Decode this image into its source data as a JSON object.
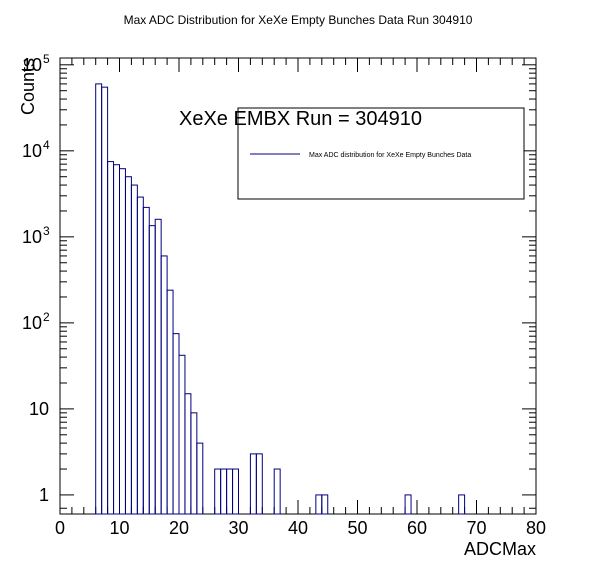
{
  "chart_data": {
    "type": "histogram",
    "title": "Max ADC Distribution for XeXe Empty Bunches Data Run 304910",
    "xlabel": "ADCMax",
    "ylabel": "Counts",
    "xlim": [
      0,
      80
    ],
    "ylim": [
      0.6,
      120000
    ],
    "yscale": "log",
    "grid": false,
    "bin_width": 1,
    "x_tick_labels": [
      "0",
      "10",
      "20",
      "30",
      "40",
      "50",
      "60",
      "70",
      "80"
    ],
    "y_tick_labels": [
      {
        "value": 1,
        "label": "1"
      },
      {
        "value": 10,
        "label": "10"
      },
      {
        "value": 100,
        "label": "10",
        "exp": "2"
      },
      {
        "value": 1000,
        "label": "10",
        "exp": "3"
      },
      {
        "value": 10000,
        "label": "10",
        "exp": "4"
      },
      {
        "value": 100000,
        "label": "10",
        "exp": "5"
      }
    ],
    "annotation": "XeXe EMBX Run = 304910",
    "legend": {
      "placement": "top-right",
      "entry": "Max ADC distribution for XeXe Empty Bunches Data"
    },
    "color": "#00007f",
    "bins": [
      {
        "x": 6,
        "y": 60000
      },
      {
        "x": 7,
        "y": 55000
      },
      {
        "x": 8,
        "y": 7500
      },
      {
        "x": 9,
        "y": 6900
      },
      {
        "x": 10,
        "y": 6200
      },
      {
        "x": 11,
        "y": 5000
      },
      {
        "x": 12,
        "y": 4000
      },
      {
        "x": 13,
        "y": 2900
      },
      {
        "x": 14,
        "y": 2200
      },
      {
        "x": 15,
        "y": 1350
      },
      {
        "x": 16,
        "y": 1600
      },
      {
        "x": 17,
        "y": 600
      },
      {
        "x": 18,
        "y": 240
      },
      {
        "x": 19,
        "y": 75
      },
      {
        "x": 20,
        "y": 42
      },
      {
        "x": 21,
        "y": 15
      },
      {
        "x": 22,
        "y": 9
      },
      {
        "x": 23,
        "y": 4
      },
      {
        "x": 26,
        "y": 2
      },
      {
        "x": 27,
        "y": 2
      },
      {
        "x": 28,
        "y": 2
      },
      {
        "x": 29,
        "y": 2
      },
      {
        "x": 32,
        "y": 3
      },
      {
        "x": 33,
        "y": 3
      },
      {
        "x": 36,
        "y": 2
      },
      {
        "x": 43,
        "y": 1
      },
      {
        "x": 44,
        "y": 1
      },
      {
        "x": 58,
        "y": 1
      },
      {
        "x": 67,
        "y": 1
      }
    ]
  }
}
